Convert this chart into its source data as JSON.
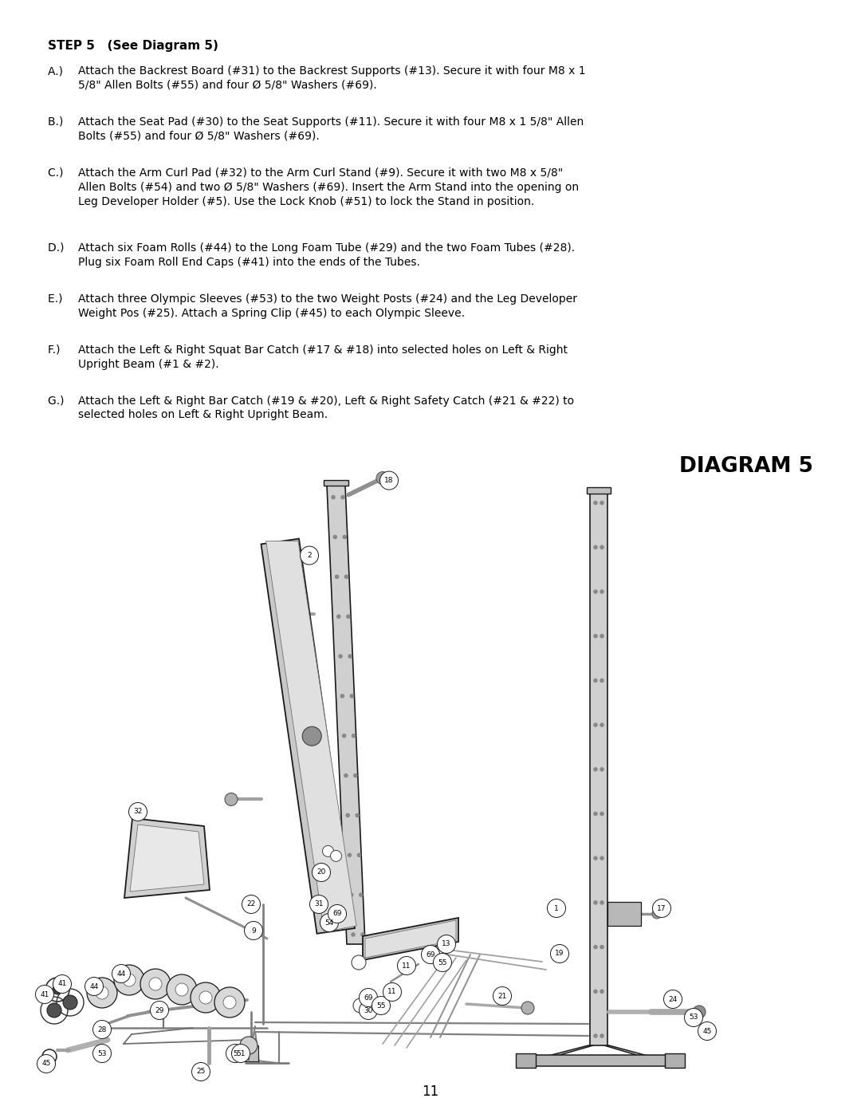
{
  "page_width": 10.8,
  "page_height": 13.97,
  "bg": "#ffffff",
  "ml": 0.6,
  "mr": 0.6,
  "title": "STEP 5   (See Diagram 5)",
  "title_fs": 11.0,
  "body_fs": 10.0,
  "diag_title": "DIAGRAM 5",
  "diag_title_fs": 19,
  "page_num": "11",
  "instrs": [
    [
      "A.) ",
      "Attach the Backrest Board (#31) to the Backrest Supports (#13). Secure it with four M8 x 1\n5/8\" Allen Bolts (#55) and four Ø 5/8\" Washers (#69)."
    ],
    [
      "B.) ",
      "Attach the Seat Pad (#30) to the Seat Supports (#11). Secure it with four M8 x 1 5/8\" Allen\nBolts (#55) and four Ø 5/8\" Washers (#69)."
    ],
    [
      "C.) ",
      "Attach the Arm Curl Pad (#32) to the Arm Curl Stand (#9). Secure it with two M8 x 5/8\"\nAllen Bolts (#54) and two Ø 5/8\" Washers (#69). Insert the Arm Stand into the opening on\nLeg Developer Holder (#5). Use the Lock Knob (#51) to lock the Stand in position."
    ],
    [
      "D.) ",
      "Attach six Foam Rolls (#44) to the Long Foam Tube (#29) and the two Foam Tubes (#28).\nPlug six Foam Roll End Caps (#41) into the ends of the Tubes."
    ],
    [
      "E.) ",
      "Attach three Olympic Sleeves (#53) to the two Weight Posts (#24) and the Leg Developer\nWeight Pos (#25). Attach a Spring Clip (#45) to each Olympic Sleeve."
    ],
    [
      "F.) ",
      "Attach the Left & Right Squat Bar Catch (#17 & #18) into selected holes on Left & Right\nUpright Beam (#1 & #2)."
    ],
    [
      "G.) ",
      "Attach the Left & Right Bar Catch (#19 & #20), Left & Right Safety Catch (#21 & #22) to\nselected holes on Left & Right Upright Beam."
    ]
  ],
  "instr_lines": [
    2,
    2,
    3,
    2,
    2,
    2,
    2
  ]
}
